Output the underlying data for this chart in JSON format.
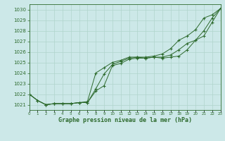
{
  "title": "Graphe pression niveau de la mer (hPa)",
  "bg_color": "#cce8e8",
  "grid_color": "#b0d4cc",
  "line_color": "#2d6a2d",
  "x_min": 0,
  "x_max": 23,
  "y_min": 1020.5,
  "y_max": 1030.5,
  "y_ticks": [
    1021,
    1022,
    1023,
    1024,
    1025,
    1026,
    1027,
    1028,
    1029,
    1030
  ],
  "line1_x": [
    0,
    1,
    2,
    3,
    4,
    5,
    6,
    7,
    8,
    9,
    10,
    11,
    12,
    13,
    14,
    15,
    16,
    17,
    18,
    19,
    20,
    21,
    22,
    23
  ],
  "line1_y": [
    1022.0,
    1021.4,
    1021.0,
    1021.1,
    1021.1,
    1021.1,
    1021.2,
    1021.2,
    1022.3,
    1022.8,
    1024.7,
    1024.9,
    1025.3,
    1025.4,
    1025.4,
    1025.5,
    1025.4,
    1025.5,
    1025.6,
    1026.2,
    1027.1,
    1027.5,
    1028.8,
    1030.1
  ],
  "line2_x": [
    0,
    1,
    2,
    3,
    4,
    5,
    6,
    7,
    8,
    9,
    10,
    11,
    12,
    13,
    14,
    15,
    16,
    17,
    18,
    19,
    20,
    21,
    22,
    23
  ],
  "line2_y": [
    1022.0,
    1021.4,
    1021.0,
    1021.1,
    1021.1,
    1021.1,
    1021.2,
    1021.2,
    1022.5,
    1023.9,
    1024.8,
    1025.1,
    1025.4,
    1025.5,
    1025.4,
    1025.5,
    1025.5,
    1025.7,
    1026.2,
    1026.8,
    1027.1,
    1028.0,
    1029.2,
    1030.1
  ],
  "line3_x": [
    0,
    1,
    2,
    3,
    4,
    5,
    6,
    7,
    8,
    9,
    10,
    11,
    12,
    13,
    14,
    15,
    16,
    17,
    18,
    19,
    20,
    21,
    22,
    23
  ],
  "line3_y": [
    1022.0,
    1021.4,
    1021.0,
    1021.1,
    1021.1,
    1021.1,
    1021.2,
    1021.3,
    1024.0,
    1024.5,
    1025.0,
    1025.2,
    1025.5,
    1025.5,
    1025.5,
    1025.6,
    1025.8,
    1026.3,
    1027.1,
    1027.5,
    1028.1,
    1029.2,
    1029.5,
    1030.1
  ]
}
